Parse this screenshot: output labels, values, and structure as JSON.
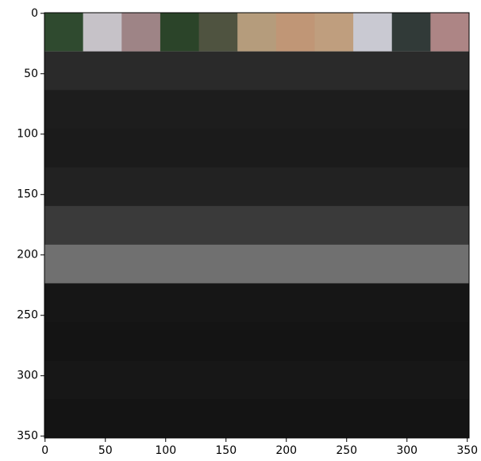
{
  "chart_data": {
    "type": "image",
    "xlim": [
      -0.5,
      351.5
    ],
    "ylim": [
      351.5,
      -0.5
    ],
    "xticks": [
      0,
      50,
      100,
      150,
      200,
      250,
      300,
      350
    ],
    "yticks": [
      0,
      50,
      100,
      150,
      200,
      250,
      300,
      350
    ],
    "tile_size": 32,
    "tile_colors": [
      "#2f4a2f",
      "#c6c2c8",
      "#9e8486",
      "#2b4429",
      "#4f5340",
      "#b59c7c",
      "#c09676",
      "#bf9e7e",
      "#c9c9d2",
      "#313a38",
      "#ad8585"
    ],
    "band_colors": [
      "#2a2a2a",
      "#1d1d1d",
      "#1b1b1b",
      "#222222",
      "#3a3a3a",
      "#707070",
      "#161616",
      "#141414",
      "#171717",
      "#141414"
    ]
  }
}
